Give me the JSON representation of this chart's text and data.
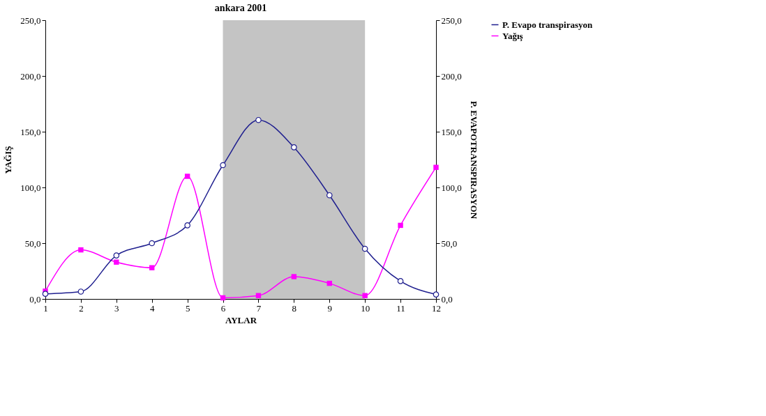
{
  "chart_data": {
    "type": "line",
    "title": "ankara 2001",
    "xlabel": "AYLAR",
    "ylabel": "YAĞIŞ",
    "y2label": "P. EVAPOTRANSPIRASYON",
    "x": [
      1,
      2,
      3,
      4,
      5,
      6,
      7,
      8,
      9,
      10,
      11,
      12
    ],
    "series": [
      {
        "name": "P. Evapo transpirasyon",
        "color": "#1f1f8f",
        "axis": "y2",
        "marker": "circle",
        "values": [
          4.6,
          6.6,
          39,
          50,
          66,
          120,
          160.5,
          136,
          93,
          45,
          16,
          4
        ]
      },
      {
        "name": "Yağış",
        "color": "#ff00ff",
        "marker": "square",
        "values": [
          7,
          44,
          33,
          28,
          110,
          1,
          3,
          20,
          14,
          3,
          66,
          118
        ]
      }
    ],
    "xlim": [
      1,
      12
    ],
    "xticks": [
      1,
      2,
      3,
      4,
      5,
      6,
      7,
      8,
      9,
      10,
      11,
      12
    ],
    "ylim": [
      0,
      250
    ],
    "yticks": [
      {
        "value": 0,
        "label": "0,0"
      },
      {
        "value": 50,
        "label": "50,0"
      },
      {
        "value": 100,
        "label": "100,0"
      },
      {
        "value": 150,
        "label": "150,0"
      },
      {
        "value": 200,
        "label": "200,0"
      },
      {
        "value": 250,
        "label": "250,0"
      }
    ],
    "y2lim": [
      0,
      250
    ],
    "y2ticks": [
      {
        "value": 0,
        "label": "0,0"
      },
      {
        "value": 50,
        "label": "50,0"
      },
      {
        "value": 100,
        "label": "100,0"
      },
      {
        "value": 150,
        "label": "150,0"
      },
      {
        "value": 200,
        "label": "200,0"
      },
      {
        "value": 250,
        "label": "250,0"
      }
    ],
    "bands": [
      {
        "axis": "x",
        "from": 6,
        "to": 10,
        "color": "#555555"
      }
    ],
    "grid": false,
    "legend": "right",
    "line_style": "solid"
  }
}
